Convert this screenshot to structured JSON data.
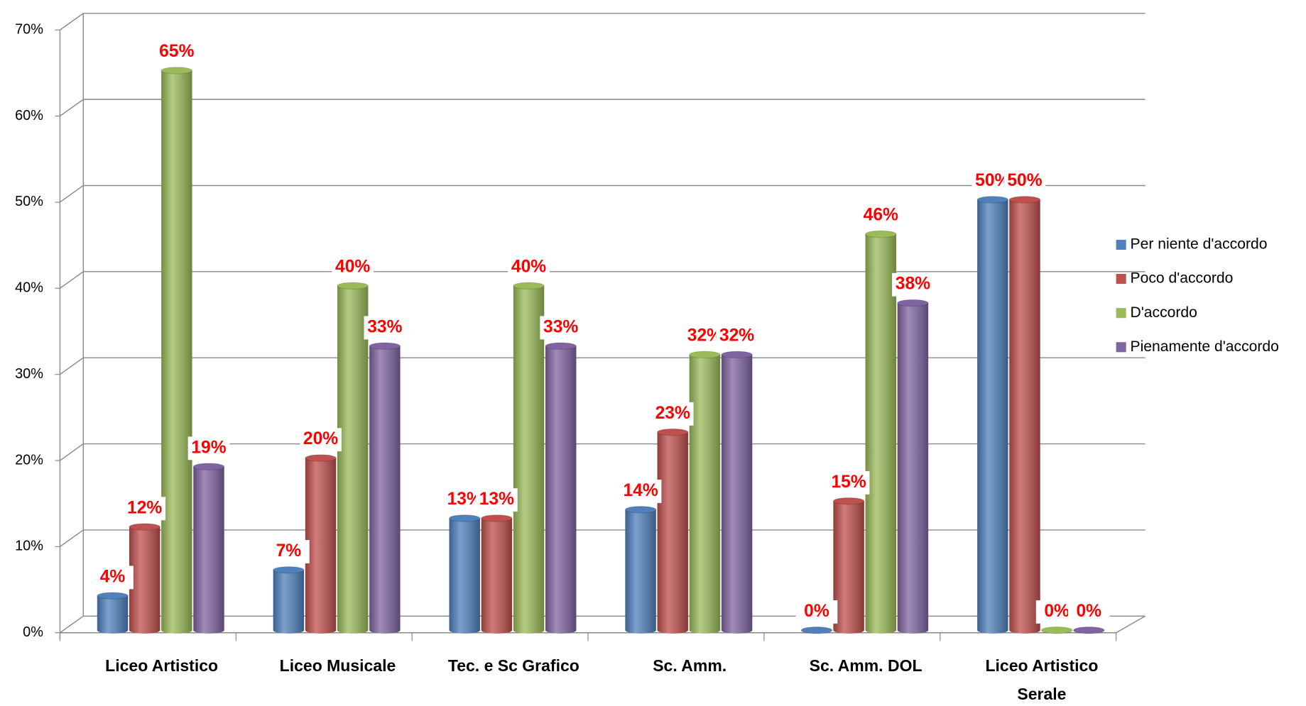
{
  "chart_data": {
    "type": "bar3d",
    "categories": [
      "Liceo Artistico",
      "Liceo Musicale",
      "Tec.  e Sc Grafico",
      "Sc. Amm.",
      "Sc. Amm. DOL",
      "Liceo Artistico Serale"
    ],
    "series": [
      {
        "name": "Per niente d'accordo",
        "color": "#4f81bd",
        "values": [
          4,
          7,
          13,
          14,
          0,
          50
        ],
        "value_labels": [
          "4%",
          "7%",
          "13%",
          "14%",
          "0%",
          "50%"
        ]
      },
      {
        "name": "Poco d'accordo",
        "color": "#c0504d",
        "values": [
          12,
          20,
          13,
          23,
          15,
          50
        ],
        "value_labels": [
          "12%",
          "20%",
          "13%",
          "23%",
          "15%",
          "50%"
        ]
      },
      {
        "name": "D'accordo",
        "color": "#9bbb59",
        "values": [
          65,
          40,
          40,
          32,
          46,
          0
        ],
        "value_labels": [
          "65%",
          "40%",
          "40%",
          "32%",
          "46%",
          "0%"
        ]
      },
      {
        "name": "Pienamente d'accordo",
        "color": "#8064a2",
        "values": [
          19,
          33,
          33,
          32,
          38,
          0
        ],
        "value_labels": [
          "19%",
          "33%",
          "33%",
          "32%",
          "38%",
          "0%"
        ]
      }
    ],
    "ylim": [
      0,
      70
    ],
    "yticks": [
      {
        "value": 0,
        "label": "0%"
      },
      {
        "value": 10,
        "label": "10%"
      },
      {
        "value": 20,
        "label": "20%"
      },
      {
        "value": 30,
        "label": "30%"
      },
      {
        "value": 40,
        "label": "40%"
      },
      {
        "value": 50,
        "label": "50%"
      },
      {
        "value": 60,
        "label": "60%"
      },
      {
        "value": 70,
        "label": "70%"
      }
    ],
    "grid": true,
    "legend": "right"
  }
}
